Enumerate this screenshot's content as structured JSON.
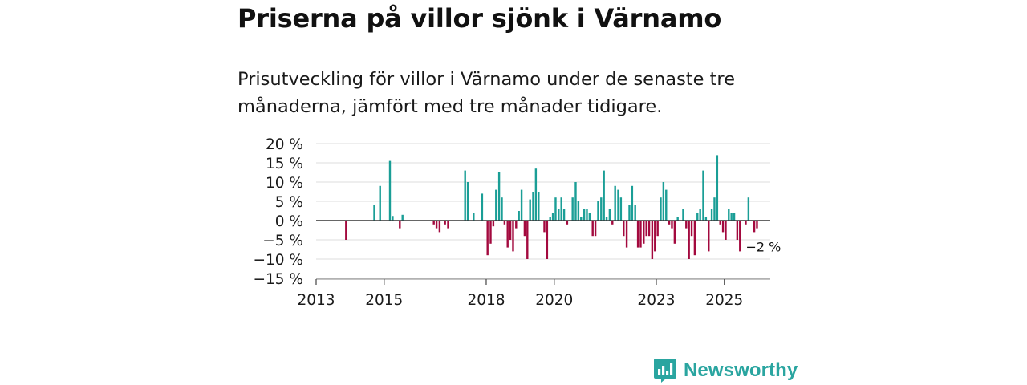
{
  "header": {
    "title": "Priserna på villor sjönk i Värnamo",
    "subtitle": "Prisutveckling för villor i Värnamo under de senaste tre månaderna, jämfört med tre månader tidigare."
  },
  "brand": {
    "name": "Newsworthy"
  },
  "colors": {
    "positive": "#1a9e96",
    "negative": "#a3093e",
    "grid": "#dddddd",
    "axis": "#444444",
    "brand": "#2aa5a0"
  },
  "chart_data": {
    "type": "bar",
    "title": "Priserna på villor sjönk i Värnamo",
    "xlabel": "",
    "ylabel": "",
    "ylim": [
      -15,
      20
    ],
    "xlim": [
      2013,
      2026.35
    ],
    "y_ticks": [
      20,
      15,
      10,
      5,
      0,
      -5,
      -10,
      -15
    ],
    "y_tick_labels": [
      "20 %",
      "15 %",
      "10 %",
      "5 %",
      "0 %",
      "−5 %",
      "−10 %",
      "−15 %"
    ],
    "x_ticks": [
      2013,
      2015,
      2018,
      2020,
      2023,
      2025
    ],
    "x_tick_labels": [
      "2013",
      "2015",
      "2018",
      "2020",
      "2023",
      "2025"
    ],
    "grid": true,
    "last_value_label": "−2 %",
    "points": [
      {
        "x": 2013.88,
        "y": -5
      },
      {
        "x": 2014.71,
        "y": 4
      },
      {
        "x": 2014.88,
        "y": 9
      },
      {
        "x": 2015.17,
        "y": 15.5
      },
      {
        "x": 2015.25,
        "y": 1.2
      },
      {
        "x": 2015.46,
        "y": -2
      },
      {
        "x": 2015.54,
        "y": 1.5
      },
      {
        "x": 2016.46,
        "y": -1
      },
      {
        "x": 2016.54,
        "y": -2
      },
      {
        "x": 2016.63,
        "y": -3
      },
      {
        "x": 2016.79,
        "y": -1
      },
      {
        "x": 2016.88,
        "y": -2
      },
      {
        "x": 2017.38,
        "y": 13
      },
      {
        "x": 2017.46,
        "y": 10
      },
      {
        "x": 2017.63,
        "y": 2
      },
      {
        "x": 2017.88,
        "y": 7
      },
      {
        "x": 2018.04,
        "y": -9
      },
      {
        "x": 2018.13,
        "y": -6
      },
      {
        "x": 2018.21,
        "y": -1.5
      },
      {
        "x": 2018.29,
        "y": 8
      },
      {
        "x": 2018.38,
        "y": 12.5
      },
      {
        "x": 2018.46,
        "y": 6
      },
      {
        "x": 2018.54,
        "y": -1
      },
      {
        "x": 2018.63,
        "y": -7
      },
      {
        "x": 2018.71,
        "y": -5
      },
      {
        "x": 2018.79,
        "y": -8
      },
      {
        "x": 2018.88,
        "y": -2
      },
      {
        "x": 2018.96,
        "y": 2.5
      },
      {
        "x": 2019.04,
        "y": 8
      },
      {
        "x": 2019.13,
        "y": -4
      },
      {
        "x": 2019.21,
        "y": -10
      },
      {
        "x": 2019.29,
        "y": 5.5
      },
      {
        "x": 2019.38,
        "y": 7.5
      },
      {
        "x": 2019.46,
        "y": 13.5
      },
      {
        "x": 2019.54,
        "y": 7.5
      },
      {
        "x": 2019.71,
        "y": -3
      },
      {
        "x": 2019.79,
        "y": -10
      },
      {
        "x": 2019.88,
        "y": 1
      },
      {
        "x": 2019.96,
        "y": 2
      },
      {
        "x": 2020.04,
        "y": 6
      },
      {
        "x": 2020.13,
        "y": 3
      },
      {
        "x": 2020.21,
        "y": 6
      },
      {
        "x": 2020.29,
        "y": 3
      },
      {
        "x": 2020.38,
        "y": -1
      },
      {
        "x": 2020.54,
        "y": 6
      },
      {
        "x": 2020.63,
        "y": 10
      },
      {
        "x": 2020.71,
        "y": 5
      },
      {
        "x": 2020.79,
        "y": 1
      },
      {
        "x": 2020.88,
        "y": 3
      },
      {
        "x": 2020.96,
        "y": 3
      },
      {
        "x": 2021.04,
        "y": 2
      },
      {
        "x": 2021.13,
        "y": -4
      },
      {
        "x": 2021.21,
        "y": -4
      },
      {
        "x": 2021.29,
        "y": 5
      },
      {
        "x": 2021.38,
        "y": 6
      },
      {
        "x": 2021.46,
        "y": 13
      },
      {
        "x": 2021.54,
        "y": 1
      },
      {
        "x": 2021.63,
        "y": 3
      },
      {
        "x": 2021.71,
        "y": -1
      },
      {
        "x": 2021.79,
        "y": 9
      },
      {
        "x": 2021.88,
        "y": 8
      },
      {
        "x": 2021.96,
        "y": 6
      },
      {
        "x": 2022.04,
        "y": -4
      },
      {
        "x": 2022.13,
        "y": -7
      },
      {
        "x": 2022.21,
        "y": 4
      },
      {
        "x": 2022.29,
        "y": 9
      },
      {
        "x": 2022.38,
        "y": 4
      },
      {
        "x": 2022.46,
        "y": -7
      },
      {
        "x": 2022.54,
        "y": -7
      },
      {
        "x": 2022.63,
        "y": -6
      },
      {
        "x": 2022.71,
        "y": -4
      },
      {
        "x": 2022.79,
        "y": -4
      },
      {
        "x": 2022.88,
        "y": -10
      },
      {
        "x": 2022.96,
        "y": -8
      },
      {
        "x": 2023.04,
        "y": -4
      },
      {
        "x": 2023.13,
        "y": 6
      },
      {
        "x": 2023.21,
        "y": 10
      },
      {
        "x": 2023.29,
        "y": 8
      },
      {
        "x": 2023.38,
        "y": -1
      },
      {
        "x": 2023.46,
        "y": -2
      },
      {
        "x": 2023.54,
        "y": -6
      },
      {
        "x": 2023.63,
        "y": 1
      },
      {
        "x": 2023.79,
        "y": 3
      },
      {
        "x": 2023.88,
        "y": -2
      },
      {
        "x": 2023.96,
        "y": -10
      },
      {
        "x": 2024.04,
        "y": -4
      },
      {
        "x": 2024.13,
        "y": -9
      },
      {
        "x": 2024.21,
        "y": 2
      },
      {
        "x": 2024.29,
        "y": 3
      },
      {
        "x": 2024.38,
        "y": 13
      },
      {
        "x": 2024.46,
        "y": 1
      },
      {
        "x": 2024.54,
        "y": -8
      },
      {
        "x": 2024.63,
        "y": 3
      },
      {
        "x": 2024.71,
        "y": 6
      },
      {
        "x": 2024.79,
        "y": 17
      },
      {
        "x": 2024.88,
        "y": -1
      },
      {
        "x": 2024.96,
        "y": -3
      },
      {
        "x": 2025.04,
        "y": -5
      },
      {
        "x": 2025.13,
        "y": 3
      },
      {
        "x": 2025.21,
        "y": 2
      },
      {
        "x": 2025.29,
        "y": 2
      },
      {
        "x": 2025.38,
        "y": -5
      },
      {
        "x": 2025.46,
        "y": -8
      },
      {
        "x": 2025.63,
        "y": -1
      },
      {
        "x": 2025.71,
        "y": 6
      },
      {
        "x": 2025.88,
        "y": -3
      },
      {
        "x": 2025.96,
        "y": -2
      }
    ]
  }
}
